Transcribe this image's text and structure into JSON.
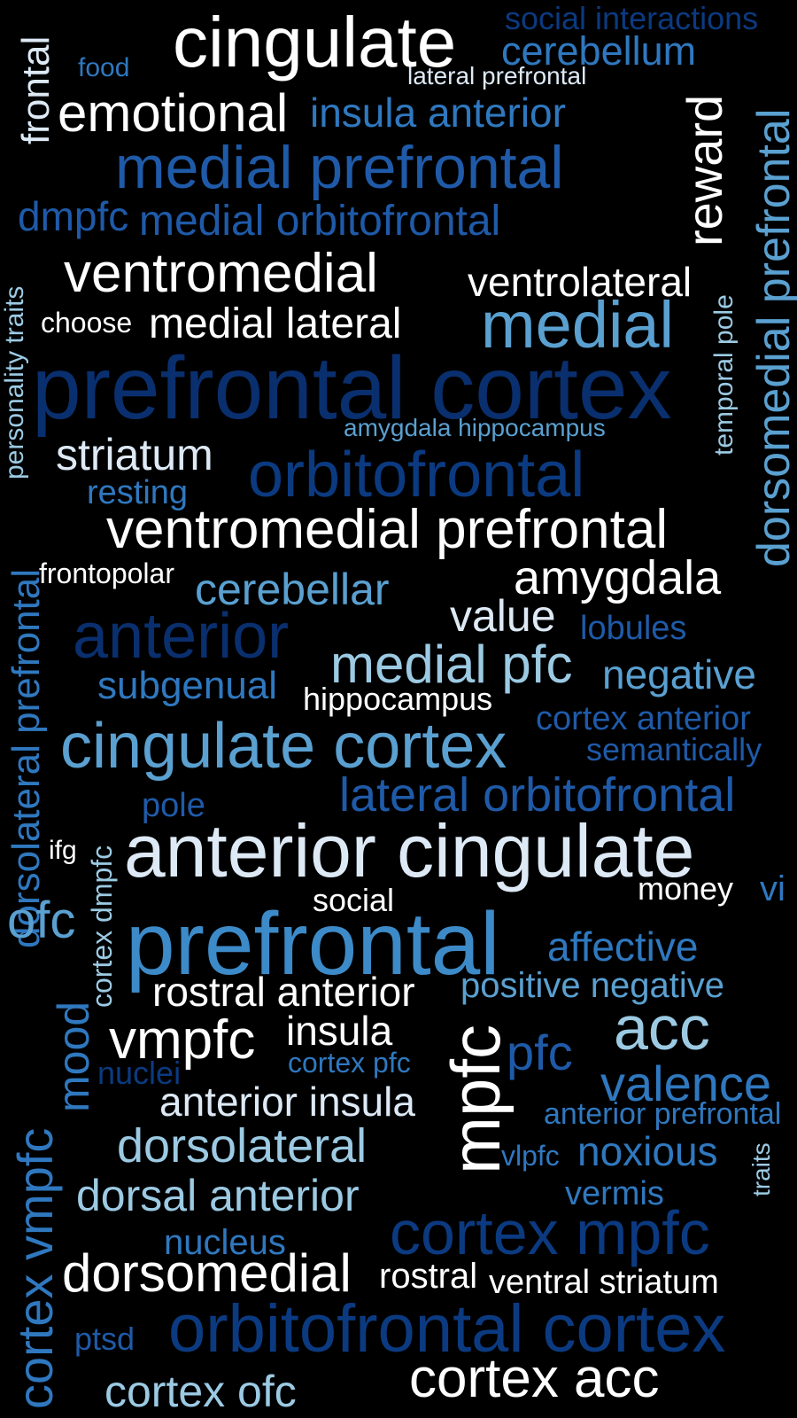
{
  "palette": {
    "white": "#ffffff",
    "pale": "#dde9f5",
    "light": "#9ccae3",
    "sky": "#5aa0d0",
    "mid": "#2f78bf",
    "blue": "#1f5aa8",
    "deep": "#0b3a80",
    "navy": "#0a2f6e"
  },
  "words": [
    {
      "text": "cingulate",
      "color": "#ffffff"
    },
    {
      "text": "social interactions",
      "color": "#0b3a80"
    },
    {
      "text": "cerebellum",
      "color": "#2f78bf"
    },
    {
      "text": "food",
      "color": "#2f78bf"
    },
    {
      "text": "lateral prefrontal",
      "color": "#dde9f5"
    },
    {
      "text": "frontal",
      "color": "#dde9f5"
    },
    {
      "text": "emotional",
      "color": "#ffffff"
    },
    {
      "text": "insula anterior",
      "color": "#2f78bf"
    },
    {
      "text": "reward",
      "color": "#ffffff"
    },
    {
      "text": "dorsomedial prefrontal",
      "color": "#5aa0d0"
    },
    {
      "text": "medial prefrontal",
      "color": "#1f5aa8"
    },
    {
      "text": "dmpfc",
      "color": "#1f5aa8"
    },
    {
      "text": "medial orbitofrontal",
      "color": "#1f5aa8"
    },
    {
      "text": "ventromedial",
      "color": "#ffffff"
    },
    {
      "text": "ventrolateral",
      "color": "#ffffff"
    },
    {
      "text": "personality traits",
      "color": "#9ccae3"
    },
    {
      "text": "choose",
      "color": "#ffffff"
    },
    {
      "text": "medial lateral",
      "color": "#ffffff"
    },
    {
      "text": "medial",
      "color": "#5aa0d0"
    },
    {
      "text": "temporal pole",
      "color": "#9ccae3"
    },
    {
      "text": "prefrontal cortex",
      "color": "#0a2f6e"
    },
    {
      "text": "amygdala hippocampus",
      "color": "#5aa0d0"
    },
    {
      "text": "striatum",
      "color": "#dde9f5"
    },
    {
      "text": "orbitofrontal",
      "color": "#0b3a80"
    },
    {
      "text": "resting",
      "color": "#2f78bf"
    },
    {
      "text": "dorsolateral prefrontal",
      "color": "#2f78bf"
    },
    {
      "text": "ventromedial prefrontal",
      "color": "#ffffff"
    },
    {
      "text": "frontopolar",
      "color": "#ffffff"
    },
    {
      "text": "cerebellar",
      "color": "#5aa0d0"
    },
    {
      "text": "amygdala",
      "color": "#ffffff"
    },
    {
      "text": "anterior",
      "color": "#0a2f6e"
    },
    {
      "text": "value",
      "color": "#dde9f5"
    },
    {
      "text": "lobules",
      "color": "#1f5aa8"
    },
    {
      "text": "medial pfc",
      "color": "#9ccae3"
    },
    {
      "text": "negative",
      "color": "#5aa0d0"
    },
    {
      "text": "subgenual",
      "color": "#2f78bf"
    },
    {
      "text": "hippocampus",
      "color": "#ffffff"
    },
    {
      "text": "cortex anterior",
      "color": "#1f5aa8"
    },
    {
      "text": "cingulate cortex",
      "color": "#5aa0d0"
    },
    {
      "text": "semantically",
      "color": "#1f5aa8"
    },
    {
      "text": "lateral orbitofrontal",
      "color": "#1f5aa8"
    },
    {
      "text": "pole",
      "color": "#1f5aa8"
    },
    {
      "text": "cortex dmpfc",
      "color": "#9ccae3"
    },
    {
      "text": "ifg",
      "color": "#ffffff"
    },
    {
      "text": "anterior cingulate",
      "color": "#dde9f5"
    },
    {
      "text": "money",
      "color": "#ffffff"
    },
    {
      "text": "vi",
      "color": "#2f78bf"
    },
    {
      "text": "social",
      "color": "#ffffff"
    },
    {
      "text": "ofc",
      "color": "#5aa0d0"
    },
    {
      "text": "prefrontal",
      "color": "#3d8ac8"
    },
    {
      "text": "affective",
      "color": "#2f78bf"
    },
    {
      "text": "mood",
      "color": "#2f78bf"
    },
    {
      "text": "rostral anterior",
      "color": "#ffffff"
    },
    {
      "text": "positive negative",
      "color": "#5aa0d0"
    },
    {
      "text": "mpfc",
      "color": "#ffffff"
    },
    {
      "text": "acc",
      "color": "#9ccae3"
    },
    {
      "text": "vmpfc",
      "color": "#ffffff"
    },
    {
      "text": "insula",
      "color": "#ffffff"
    },
    {
      "text": "cortex pfc",
      "color": "#2f78bf"
    },
    {
      "text": "pfc",
      "color": "#1f5aa8"
    },
    {
      "text": "valence",
      "color": "#2f78bf"
    },
    {
      "text": "cortex vmpfc",
      "color": "#2f78bf"
    },
    {
      "text": "nuclei",
      "color": "#0b3a80"
    },
    {
      "text": "anterior insula",
      "color": "#dde9f5"
    },
    {
      "text": "anterior prefrontal",
      "color": "#2f78bf"
    },
    {
      "text": "dorsolateral",
      "color": "#9ccae3"
    },
    {
      "text": "vlpfc",
      "color": "#2f78bf"
    },
    {
      "text": "noxious",
      "color": "#2f78bf"
    },
    {
      "text": "traits",
      "color": "#9ccae3"
    },
    {
      "text": "dorsal anterior",
      "color": "#9ccae3"
    },
    {
      "text": "vermis",
      "color": "#2f78bf"
    },
    {
      "text": "cortex mpfc",
      "color": "#0b3a80"
    },
    {
      "text": "nucleus",
      "color": "#2f78bf"
    },
    {
      "text": "dorsomedial",
      "color": "#ffffff"
    },
    {
      "text": "rostral",
      "color": "#ffffff"
    },
    {
      "text": "ventral striatum",
      "color": "#ffffff"
    },
    {
      "text": "ptsd",
      "color": "#1f5aa8"
    },
    {
      "text": "orbitofrontal cortex",
      "color": "#0b3a80"
    },
    {
      "text": "cortex ofc",
      "color": "#9ccae3"
    },
    {
      "text": "cortex acc",
      "color": "#ffffff"
    }
  ]
}
